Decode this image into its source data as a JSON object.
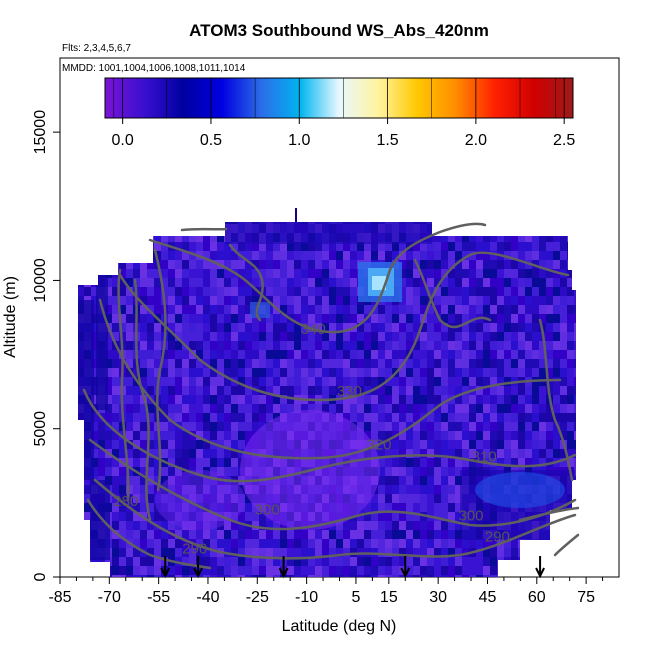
{
  "chart_data": {
    "type": "heatmap",
    "title": "ATOM3 Southbound WS_Abs_420nm",
    "flights_note": "Flts: 2,3,4,5,6,7",
    "dates_note": "MMDD: 1001,1004,1006,1008,1011,1014",
    "xlabel": "Latitude (deg N)",
    "ylabel": "Altitude (m)",
    "xlim": [
      -85,
      85
    ],
    "ylim": [
      0,
      17500
    ],
    "x_ticks": [
      -85,
      -70,
      -55,
      -40,
      -25,
      -10,
      5,
      15,
      30,
      45,
      60,
      75
    ],
    "x_tick_labels": [
      "-85",
      "-70",
      "-55",
      "-40",
      "-25",
      "-10",
      "5",
      "15",
      "30",
      "45",
      "60",
      "75"
    ],
    "y_ticks": [
      0,
      5000,
      10000,
      15000
    ],
    "y_tick_labels": [
      "0",
      "5000",
      "10000",
      "15000"
    ],
    "colorbar": {
      "range": [
        -0.1,
        2.55
      ],
      "ticks": [
        0.0,
        0.5,
        1.0,
        1.5,
        2.0,
        2.5
      ],
      "tick_labels": [
        "0.0",
        "0.5",
        "1.0",
        "1.5",
        "2.0",
        "2.5"
      ],
      "colors": [
        "#7b14d6",
        "#3a0fd0",
        "#0000a0",
        "#0000e0",
        "#2c6ce8",
        "#00b4f0",
        "#e8f8ff",
        "#fff4a0",
        "#ffc800",
        "#ff8c00",
        "#ff2000",
        "#d00000",
        "#9e1a1a"
      ]
    },
    "field_color": "#4a1fd6",
    "contours": [
      {
        "label": "340",
        "x": -8,
        "y": 8200
      },
      {
        "label": "330",
        "x": 3,
        "y": 6100
      },
      {
        "label": "320",
        "x": 12,
        "y": 4300
      },
      {
        "label": "310",
        "x": 44,
        "y": 3900
      },
      {
        "label": "300",
        "x": -22,
        "y": 2100
      },
      {
        "label": "300",
        "x": 40,
        "y": 1900
      },
      {
        "label": "290",
        "x": -44,
        "y": 800
      },
      {
        "label": "290",
        "x": 48,
        "y": 1200
      },
      {
        "label": "280",
        "x": -65,
        "y": 2400
      }
    ],
    "arrows_latitude": [
      -53,
      -43,
      -17,
      20,
      61
    ],
    "legend": "top"
  }
}
